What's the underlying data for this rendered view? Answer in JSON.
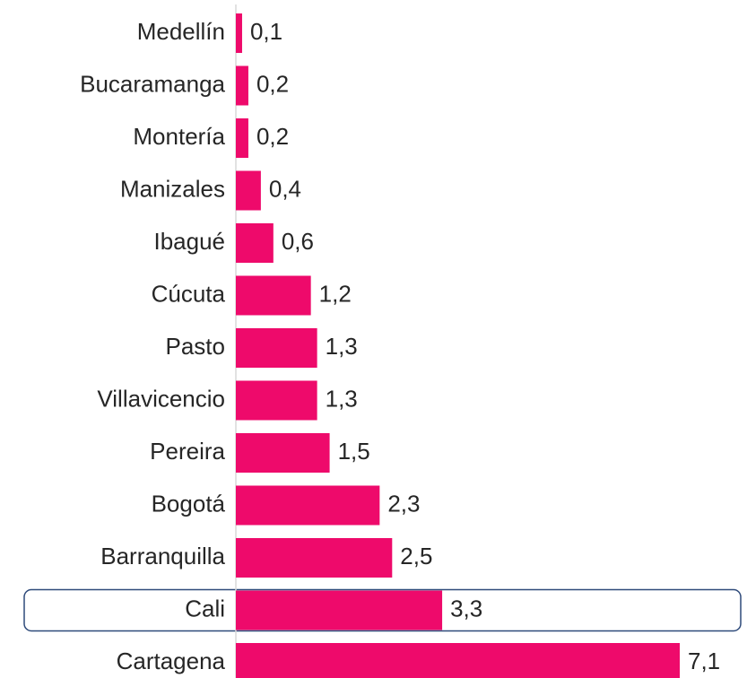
{
  "chart_data": {
    "type": "bar",
    "orientation": "horizontal",
    "categories": [
      "Medellín",
      "Bucaramanga",
      "Montería",
      "Manizales",
      "Ibagué",
      "Cúcuta",
      "Pasto",
      "Villavicencio",
      "Pereira",
      "Bogotá",
      "Barranquilla",
      "Cali",
      "Cartagena"
    ],
    "values": [
      0.1,
      0.2,
      0.2,
      0.4,
      0.6,
      1.2,
      1.3,
      1.3,
      1.5,
      2.3,
      2.5,
      3.3,
      7.1
    ],
    "value_labels": [
      "0,1",
      "0,2",
      "0,2",
      "0,4",
      "0,6",
      "1,2",
      "1,3",
      "1,3",
      "1,5",
      "2,3",
      "2,5",
      "3,3",
      "7,1"
    ],
    "color": "#ee0a6b",
    "highlight": "Cali"
  }
}
